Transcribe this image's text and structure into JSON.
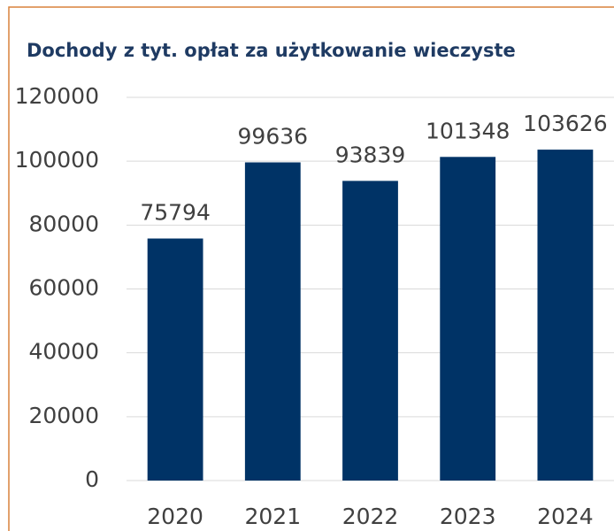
{
  "chart_data": {
    "type": "bar",
    "title": "Dochody z tyt. opłat za użytkowanie wieczyste",
    "categories": [
      "2020",
      "2021",
      "2022",
      "2023",
      "2024"
    ],
    "values": [
      75794,
      99636,
      93839,
      101348,
      103626
    ],
    "color": "#003366",
    "ylim": [
      0,
      120000
    ],
    "yticks": [
      0,
      20000,
      40000,
      60000,
      80000,
      100000,
      120000
    ],
    "grid": true,
    "data_labels": true
  }
}
